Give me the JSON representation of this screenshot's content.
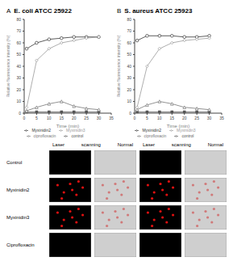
{
  "chart_data": [
    {
      "type": "line",
      "annotation": "A",
      "title": "E. coli ATCC 25922",
      "x_label": "Time (min)",
      "y_label": "Relative fluorescence intensity (%)",
      "x": [
        1,
        5,
        10,
        15,
        20,
        25,
        30
      ],
      "xlim": [
        0,
        35
      ],
      "xticks": [
        0,
        5,
        10,
        15,
        20,
        25,
        30,
        35
      ],
      "ylim": [
        0,
        80
      ],
      "yticks": [
        0,
        10,
        20,
        30,
        40,
        50,
        60,
        70,
        80
      ],
      "legend": "bottom",
      "series": [
        {
          "name": "control",
          "color": "#555555",
          "marker": "square",
          "values": [
            1,
            1,
            1,
            1,
            1,
            1,
            1
          ]
        },
        {
          "name": "ciprofloxacin",
          "color": "#777777",
          "marker": "triangle",
          "values": [
            2,
            5,
            8,
            10,
            6,
            4,
            3
          ]
        },
        {
          "name": "Myxinidin2",
          "color": "#333333",
          "marker": "circle",
          "values": [
            55,
            60,
            63,
            64,
            65,
            65,
            65
          ]
        },
        {
          "name": "Myxinidin3",
          "color": "#999999",
          "marker": "diamond",
          "values": [
            5,
            45,
            55,
            60,
            62,
            64,
            65
          ]
        }
      ]
    },
    {
      "type": "line",
      "annotation": "B",
      "title": "S. aureus ATCC 25923",
      "x_label": "Time (min)",
      "y_label": "Relative fluorescence intensity (%)",
      "x": [
        1,
        5,
        10,
        15,
        20,
        25,
        30
      ],
      "xlim": [
        0,
        35
      ],
      "xticks": [
        0,
        5,
        10,
        15,
        20,
        25,
        30,
        35
      ],
      "ylim": [
        0,
        80
      ],
      "yticks": [
        0,
        10,
        20,
        30,
        40,
        50,
        60,
        70,
        80
      ],
      "legend": "bottom",
      "series": [
        {
          "name": "control",
          "color": "#555555",
          "marker": "square",
          "values": [
            1,
            1,
            1,
            1,
            1,
            1,
            1
          ]
        },
        {
          "name": "ciprofloxacin",
          "color": "#777777",
          "marker": "triangle",
          "values": [
            3,
            7,
            10,
            8,
            5,
            4,
            3
          ]
        },
        {
          "name": "Myxinidin2",
          "color": "#333333",
          "marker": "circle",
          "values": [
            62,
            66,
            66,
            66,
            65,
            65,
            66
          ]
        },
        {
          "name": "Myxinidin3",
          "color": "#999999",
          "marker": "diamond",
          "values": [
            5,
            40,
            55,
            60,
            62,
            63,
            64
          ]
        }
      ]
    }
  ],
  "microscopy": {
    "column_headers": [
      "Laser",
      "scanning",
      "Normal"
    ],
    "rows": [
      "Control",
      "Myxinidin2",
      "Myxinidin3",
      "Ciprofloxacin"
    ]
  }
}
